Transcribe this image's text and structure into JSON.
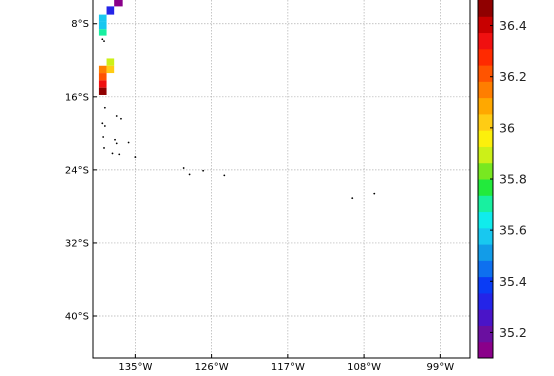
{
  "chart_data": {
    "type": "heatmap",
    "title": "",
    "xlabel": "",
    "ylabel": "",
    "x_ticks": [
      {
        "value": -135,
        "label": "135°W"
      },
      {
        "value": -126,
        "label": "126°W"
      },
      {
        "value": -117,
        "label": "117°W"
      },
      {
        "value": -108,
        "label": "108°W"
      },
      {
        "value": -99,
        "label": "99°W"
      }
    ],
    "y_ticks": [
      {
        "value": -8,
        "label": "8°S"
      },
      {
        "value": -16,
        "label": "16°S"
      },
      {
        "value": -24,
        "label": "24°S"
      },
      {
        "value": -32,
        "label": "32°S"
      },
      {
        "value": -40,
        "label": "40°S"
      }
    ],
    "xlim": [
      -140,
      -95.5
    ],
    "ylim": [
      -44.6,
      -5.4
    ],
    "grid": true,
    "colorbar": {
      "range": [
        35.1,
        36.5
      ],
      "ticks": [
        35.2,
        35.4,
        35.6,
        35.8,
        36,
        36.2,
        36.4
      ],
      "tick_labels": [
        "35.2",
        "35.4",
        "35.6",
        "35.8",
        "36",
        "36.2",
        "36.4"
      ],
      "colors": [
        "#8a008a",
        "#6a0fa0",
        "#4a14c8",
        "#2424e8",
        "#0a3cf5",
        "#0e70ef",
        "#129ce8",
        "#18c8f0",
        "#10ecec",
        "#18f0a0",
        "#22ea3c",
        "#78e820",
        "#ccf018",
        "#fcf00c",
        "#ffcc14",
        "#ffa800",
        "#ff7e00",
        "#ff5400",
        "#ff2a00",
        "#f01010",
        "#c80000",
        "#900000"
      ]
    },
    "cells": [
      {
        "lon": -137.5,
        "lat": -5.4,
        "w": 1.0,
        "h": 0.7,
        "value": 35.15
      },
      {
        "lon": -138.4,
        "lat": -6.1,
        "w": 0.9,
        "h": 0.9,
        "value": 35.32
      },
      {
        "lon": -139.3,
        "lat": -7.0,
        "w": 0.9,
        "h": 0.8,
        "value": 35.55
      },
      {
        "lon": -139.3,
        "lat": -7.8,
        "w": 0.9,
        "h": 0.8,
        "value": 35.55
      },
      {
        "lon": -139.3,
        "lat": -8.6,
        "w": 0.9,
        "h": 0.7,
        "value": 35.68
      },
      {
        "lon": -138.4,
        "lat": -11.8,
        "w": 0.9,
        "h": 0.8,
        "value": 35.9
      },
      {
        "lon": -139.3,
        "lat": -12.6,
        "w": 0.9,
        "h": 0.8,
        "value": 36.18
      },
      {
        "lon": -138.4,
        "lat": -12.6,
        "w": 0.9,
        "h": 0.8,
        "value": 36.05
      },
      {
        "lon": -139.3,
        "lat": -13.4,
        "w": 0.9,
        "h": 0.8,
        "value": 36.22
      },
      {
        "lon": -139.3,
        "lat": -14.2,
        "w": 0.9,
        "h": 0.8,
        "value": 36.32
      },
      {
        "lon": -139.3,
        "lat": -15.0,
        "w": 0.9,
        "h": 0.8,
        "value": 36.45
      }
    ],
    "islands": [
      {
        "lon": -138.9,
        "lat": -9.7
      },
      {
        "lon": -138.7,
        "lat": -9.9
      },
      {
        "lon": -138.6,
        "lat": -17.2
      },
      {
        "lon": -137.2,
        "lat": -18.1
      },
      {
        "lon": -136.7,
        "lat": -18.4
      },
      {
        "lon": -138.9,
        "lat": -18.9
      },
      {
        "lon": -138.6,
        "lat": -19.2
      },
      {
        "lon": -138.8,
        "lat": -20.4
      },
      {
        "lon": -137.4,
        "lat": -20.7
      },
      {
        "lon": -137.2,
        "lat": -21.1
      },
      {
        "lon": -135.8,
        "lat": -21.0
      },
      {
        "lon": -138.7,
        "lat": -21.6
      },
      {
        "lon": -137.7,
        "lat": -22.2
      },
      {
        "lon": -136.9,
        "lat": -22.3
      },
      {
        "lon": -135.0,
        "lat": -22.6
      },
      {
        "lon": -129.3,
        "lat": -23.8
      },
      {
        "lon": -128.6,
        "lat": -24.5
      },
      {
        "lon": -127.0,
        "lat": -24.1
      },
      {
        "lon": -124.5,
        "lat": -24.6
      },
      {
        "lon": -109.4,
        "lat": -27.1
      },
      {
        "lon": -106.8,
        "lat": -26.6
      }
    ]
  }
}
